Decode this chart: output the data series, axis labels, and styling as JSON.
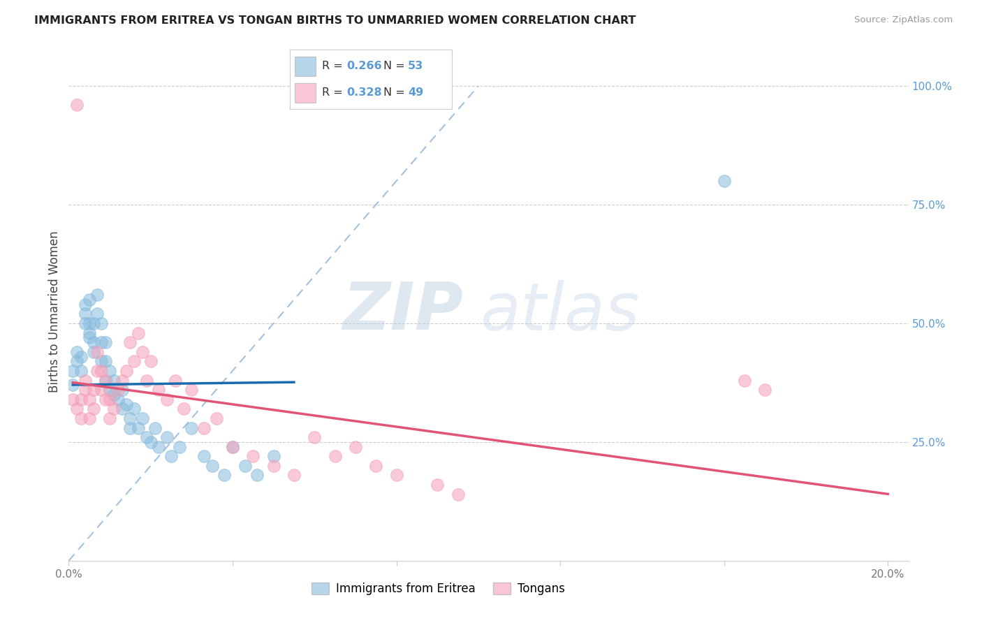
{
  "title": "IMMIGRANTS FROM ERITREA VS TONGAN BIRTHS TO UNMARRIED WOMEN CORRELATION CHART",
  "source": "Source: ZipAtlas.com",
  "ylabel": "Births to Unmarried Women",
  "xlim": [
    0.0,
    0.205
  ],
  "ylim": [
    0.0,
    1.05
  ],
  "xticks": [
    0.0,
    0.04,
    0.08,
    0.12,
    0.16,
    0.2
  ],
  "xtick_labels": [
    "0.0%",
    "",
    "",
    "",
    "",
    "20.0%"
  ],
  "yticks_right": [
    0.25,
    0.5,
    0.75,
    1.0
  ],
  "ytick_labels_right": [
    "25.0%",
    "50.0%",
    "75.0%",
    "100.0%"
  ],
  "blue_color": "#88bbdd",
  "pink_color": "#f4a0b8",
  "blue_line_color": "#1a6ab0",
  "pink_line_color": "#e05577",
  "diag_color": "#99bbdd",
  "blue_r": "0.266",
  "blue_n": "53",
  "pink_r": "0.328",
  "pink_n": "49",
  "legend_blue_label": "Immigrants from Eritrea",
  "legend_pink_label": "Tongans",
  "watermark_zip": "ZIP",
  "watermark_atlas": "atlas",
  "watermark_color": "#c8d8ee",
  "grid_color": "#cccccc",
  "title_color": "#222222",
  "source_color": "#999999",
  "axis_label_color": "#444444",
  "tick_label_color_x": "#777777",
  "tick_label_color_y": "#5b9bd5",
  "r_n_color": "#5b9bd5",
  "blue_scatter_x": [
    0.001,
    0.001,
    0.002,
    0.002,
    0.003,
    0.003,
    0.004,
    0.004,
    0.004,
    0.005,
    0.005,
    0.005,
    0.005,
    0.006,
    0.006,
    0.006,
    0.007,
    0.007,
    0.008,
    0.008,
    0.008,
    0.009,
    0.009,
    0.009,
    0.01,
    0.01,
    0.011,
    0.011,
    0.012,
    0.013,
    0.013,
    0.014,
    0.015,
    0.015,
    0.016,
    0.017,
    0.018,
    0.019,
    0.02,
    0.021,
    0.022,
    0.024,
    0.025,
    0.027,
    0.03,
    0.033,
    0.035,
    0.038,
    0.04,
    0.043,
    0.046,
    0.05,
    0.16
  ],
  "blue_scatter_y": [
    0.37,
    0.4,
    0.42,
    0.44,
    0.4,
    0.43,
    0.5,
    0.54,
    0.52,
    0.48,
    0.55,
    0.5,
    0.47,
    0.44,
    0.46,
    0.5,
    0.52,
    0.56,
    0.42,
    0.46,
    0.5,
    0.38,
    0.42,
    0.46,
    0.36,
    0.4,
    0.35,
    0.38,
    0.34,
    0.32,
    0.36,
    0.33,
    0.3,
    0.28,
    0.32,
    0.28,
    0.3,
    0.26,
    0.25,
    0.28,
    0.24,
    0.26,
    0.22,
    0.24,
    0.28,
    0.22,
    0.2,
    0.18,
    0.24,
    0.2,
    0.18,
    0.22,
    0.8
  ],
  "pink_scatter_x": [
    0.001,
    0.002,
    0.002,
    0.003,
    0.003,
    0.004,
    0.004,
    0.005,
    0.005,
    0.006,
    0.006,
    0.007,
    0.007,
    0.008,
    0.008,
    0.009,
    0.009,
    0.01,
    0.01,
    0.011,
    0.012,
    0.013,
    0.014,
    0.015,
    0.016,
    0.017,
    0.018,
    0.019,
    0.02,
    0.022,
    0.024,
    0.026,
    0.028,
    0.03,
    0.033,
    0.036,
    0.04,
    0.045,
    0.05,
    0.055,
    0.06,
    0.065,
    0.07,
    0.075,
    0.08,
    0.09,
    0.095,
    0.165,
    0.17
  ],
  "pink_scatter_y": [
    0.34,
    0.32,
    0.96,
    0.3,
    0.34,
    0.36,
    0.38,
    0.3,
    0.34,
    0.32,
    0.36,
    0.4,
    0.44,
    0.36,
    0.4,
    0.34,
    0.38,
    0.3,
    0.34,
    0.32,
    0.36,
    0.38,
    0.4,
    0.46,
    0.42,
    0.48,
    0.44,
    0.38,
    0.42,
    0.36,
    0.34,
    0.38,
    0.32,
    0.36,
    0.28,
    0.3,
    0.24,
    0.22,
    0.2,
    0.18,
    0.26,
    0.22,
    0.24,
    0.2,
    0.18,
    0.16,
    0.14,
    0.38,
    0.36
  ]
}
